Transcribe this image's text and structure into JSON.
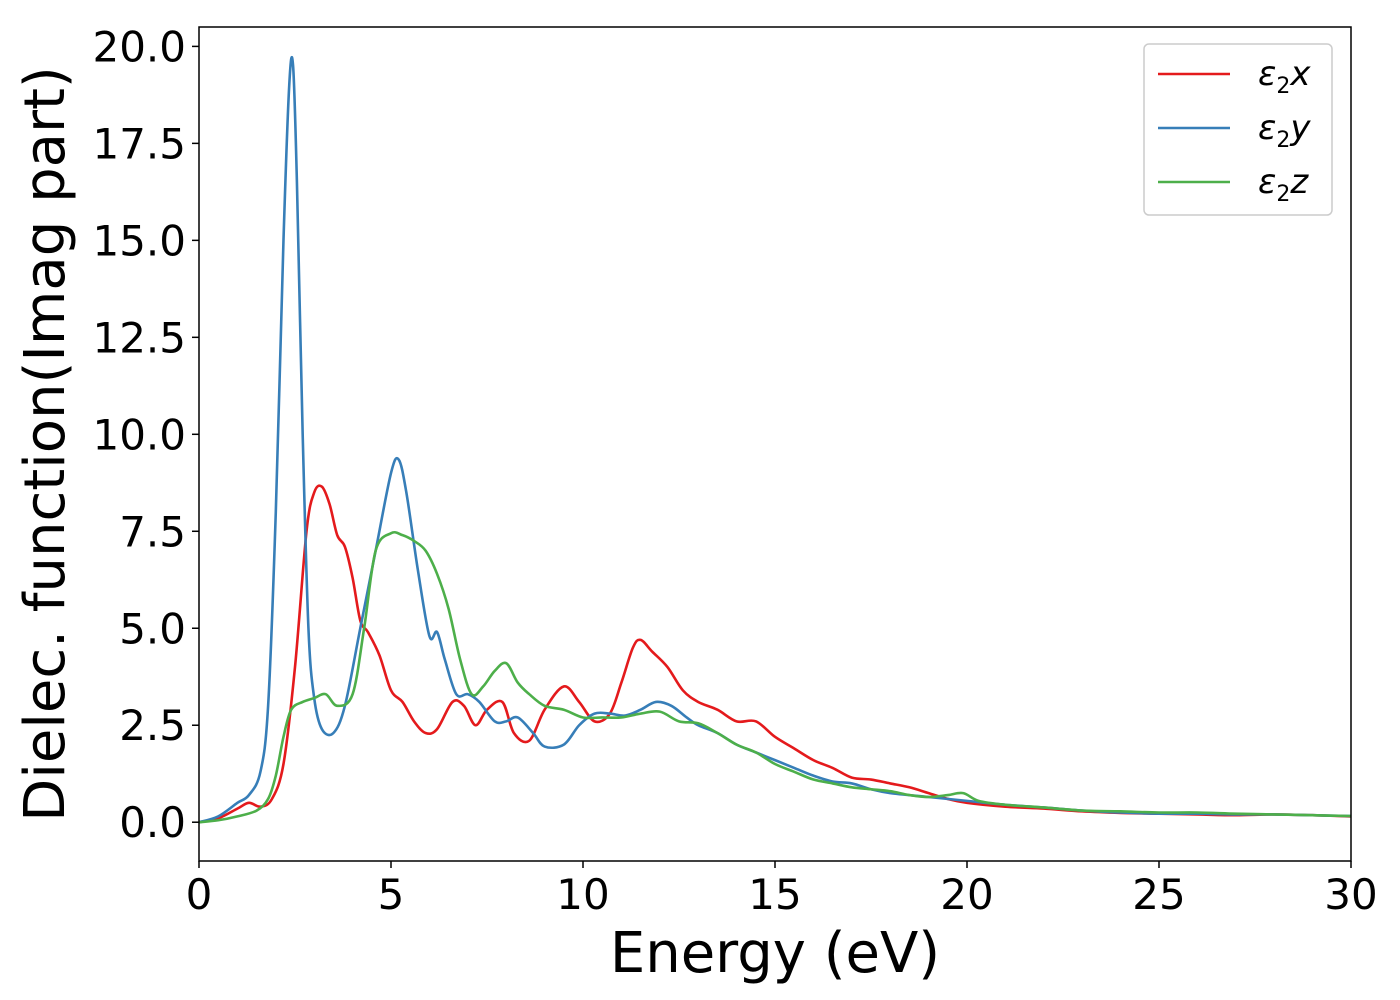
{
  "chart_data": {
    "type": "line",
    "xlabel": "Energy (eV)",
    "ylabel": "Dielec. function(Imag part)",
    "xlim": [
      0,
      30
    ],
    "ylim": [
      -1.0,
      20.5
    ],
    "grid": false,
    "legend_position": "top-right",
    "x_ticks": [
      0,
      5,
      10,
      15,
      20,
      25,
      30
    ],
    "x_tick_labels": [
      "0",
      "5",
      "10",
      "15",
      "20",
      "25",
      "30"
    ],
    "y_ticks": [
      0.0,
      2.5,
      5.0,
      7.5,
      10.0,
      12.5,
      15.0,
      17.5,
      20.0
    ],
    "y_tick_labels": [
      "0.0",
      "2.5",
      "5.0",
      "7.5",
      "10.0",
      "12.5",
      "15.0",
      "17.5",
      "20.0"
    ],
    "legend": [
      {
        "main": "ε",
        "sub": "2",
        "var": "x",
        "color": "#e41a1c"
      },
      {
        "main": "ε",
        "sub": "2",
        "var": "y",
        "color": "#377eb8"
      },
      {
        "main": "ε",
        "sub": "2",
        "var": "z",
        "color": "#4daf4a"
      }
    ],
    "series": [
      {
        "color": "#e41a1c",
        "x": [
          0,
          0.5,
          1.0,
          1.3,
          1.6,
          1.9,
          2.2,
          2.5,
          2.8,
          3.0,
          3.2,
          3.4,
          3.6,
          3.8,
          4.0,
          4.2,
          4.4,
          4.7,
          5.0,
          5.3,
          5.6,
          5.9,
          6.2,
          6.6,
          6.9,
          7.2,
          7.5,
          7.9,
          8.2,
          8.6,
          9.0,
          9.5,
          9.9,
          10.3,
          10.7,
          11.0,
          11.3,
          11.5,
          11.8,
          12.2,
          12.6,
          13.0,
          13.5,
          14.0,
          14.5,
          15.0,
          15.5,
          16.0,
          16.5,
          17.0,
          17.5,
          18.0,
          18.5,
          19.0,
          19.5,
          20.0,
          21.0,
          22.0,
          23.0,
          24.0,
          25.0,
          26.0,
          27.0,
          28.0,
          29.0,
          30.0
        ],
        "values": [
          0.0,
          0.1,
          0.35,
          0.5,
          0.4,
          0.6,
          1.5,
          4.0,
          7.5,
          8.5,
          8.65,
          8.2,
          7.4,
          7.1,
          6.3,
          5.2,
          4.9,
          4.3,
          3.4,
          3.1,
          2.6,
          2.3,
          2.4,
          3.1,
          3.0,
          2.5,
          2.9,
          3.1,
          2.3,
          2.1,
          2.9,
          3.5,
          3.1,
          2.6,
          2.8,
          3.6,
          4.5,
          4.7,
          4.4,
          4.0,
          3.4,
          3.1,
          2.9,
          2.6,
          2.6,
          2.2,
          1.9,
          1.6,
          1.4,
          1.15,
          1.1,
          1.0,
          0.9,
          0.75,
          0.6,
          0.5,
          0.4,
          0.35,
          0.28,
          0.24,
          0.22,
          0.2,
          0.18,
          0.2,
          0.18,
          0.15
        ]
      },
      {
        "color": "#377eb8",
        "x": [
          0,
          0.5,
          1.0,
          1.3,
          1.6,
          1.8,
          2.0,
          2.2,
          2.35,
          2.45,
          2.55,
          2.7,
          2.85,
          3.0,
          3.2,
          3.5,
          3.8,
          4.2,
          4.6,
          5.0,
          5.2,
          5.4,
          5.7,
          6.0,
          6.2,
          6.4,
          6.7,
          7.0,
          7.3,
          7.7,
          8.0,
          8.3,
          8.7,
          9.0,
          9.5,
          9.9,
          10.3,
          10.7,
          11.1,
          11.5,
          11.9,
          12.3,
          12.7,
          13.0,
          13.5,
          14.0,
          14.5,
          15.0,
          15.5,
          16.0,
          16.5,
          17.0,
          17.5,
          18.0,
          19.0,
          20.0,
          21.0,
          22.0,
          23.0,
          24.0,
          25.0,
          26.0,
          27.0,
          28.0,
          29.0,
          30.0
        ],
        "values": [
          0.0,
          0.15,
          0.5,
          0.7,
          1.3,
          3.0,
          8.0,
          15.0,
          19.0,
          19.5,
          16.5,
          10.0,
          5.0,
          3.2,
          2.4,
          2.3,
          3.0,
          5.0,
          7.0,
          9.0,
          9.35,
          8.5,
          6.5,
          4.8,
          4.9,
          4.2,
          3.3,
          3.3,
          3.1,
          2.6,
          2.6,
          2.7,
          2.3,
          1.95,
          2.0,
          2.5,
          2.8,
          2.8,
          2.75,
          2.9,
          3.1,
          3.0,
          2.7,
          2.5,
          2.3,
          2.0,
          1.8,
          1.6,
          1.4,
          1.2,
          1.05,
          1.0,
          0.85,
          0.75,
          0.65,
          0.55,
          0.45,
          0.38,
          0.3,
          0.25,
          0.22,
          0.22,
          0.2,
          0.2,
          0.18,
          0.16
        ]
      },
      {
        "color": "#4daf4a",
        "x": [
          0,
          0.5,
          1.0,
          1.5,
          1.8,
          2.0,
          2.2,
          2.4,
          2.7,
          3.0,
          3.3,
          3.6,
          4.0,
          4.3,
          4.6,
          5.0,
          5.3,
          5.6,
          5.9,
          6.2,
          6.5,
          6.8,
          7.1,
          7.4,
          7.7,
          8.0,
          8.3,
          8.6,
          9.0,
          9.5,
          10.0,
          10.5,
          11.0,
          11.5,
          12.0,
          12.5,
          13.0,
          13.5,
          14.0,
          14.5,
          15.0,
          15.5,
          16.0,
          16.5,
          17.0,
          17.5,
          18.0,
          18.5,
          19.0,
          19.5,
          19.9,
          20.3,
          21.0,
          22.0,
          23.0,
          24.0,
          25.0,
          26.0,
          27.0,
          28.0,
          29.0,
          30.0
        ],
        "values": [
          0.0,
          0.05,
          0.15,
          0.3,
          0.6,
          1.2,
          2.2,
          2.9,
          3.1,
          3.2,
          3.3,
          3.0,
          3.3,
          5.0,
          7.0,
          7.45,
          7.4,
          7.25,
          7.0,
          6.4,
          5.5,
          4.2,
          3.3,
          3.5,
          3.9,
          4.1,
          3.6,
          3.3,
          3.0,
          2.9,
          2.7,
          2.7,
          2.7,
          2.8,
          2.85,
          2.6,
          2.55,
          2.3,
          2.0,
          1.8,
          1.5,
          1.3,
          1.1,
          1.0,
          0.9,
          0.85,
          0.8,
          0.7,
          0.65,
          0.7,
          0.75,
          0.55,
          0.45,
          0.38,
          0.3,
          0.28,
          0.25,
          0.25,
          0.22,
          0.2,
          0.18,
          0.16
        ]
      }
    ]
  }
}
